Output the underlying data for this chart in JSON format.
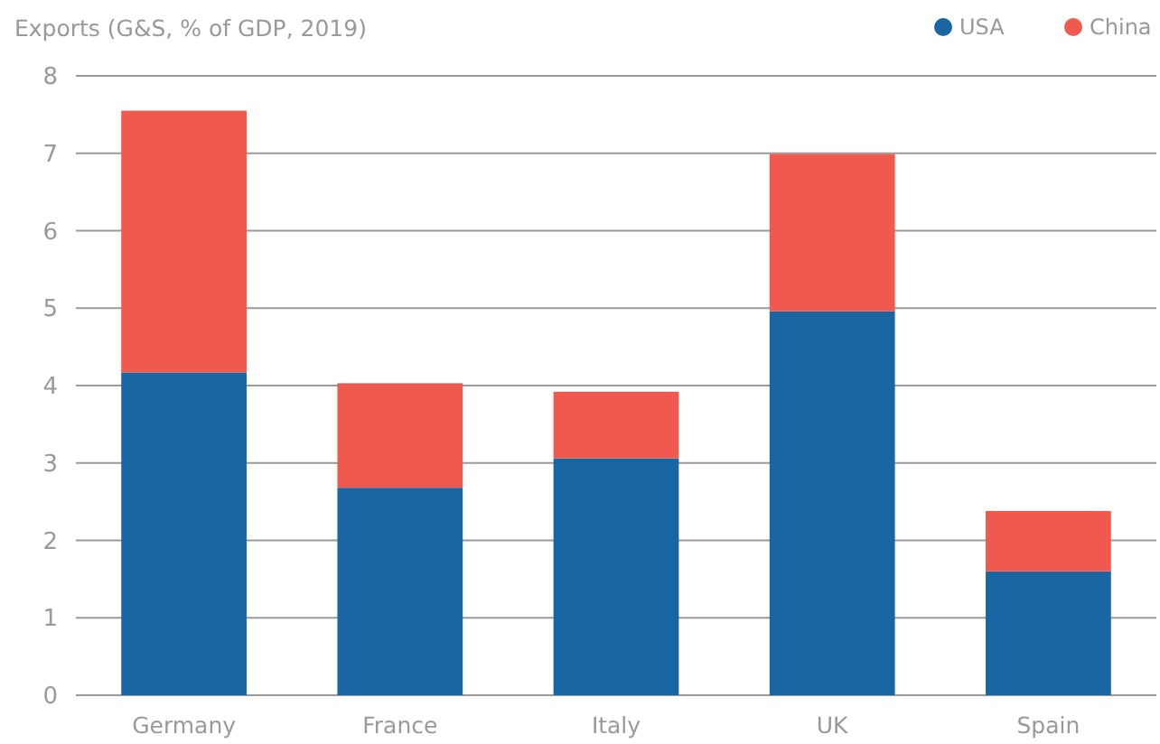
{
  "chart_data": {
    "type": "bar",
    "title": "Exports (G&S, % of GDP, 2019)",
    "categories": [
      "Germany",
      "France",
      "Italy",
      "UK",
      "Spain"
    ],
    "stacked": true,
    "series": [
      {
        "name": "USA",
        "color": "#1a66a3",
        "values": [
          4.17,
          2.68,
          3.06,
          4.96,
          1.6
        ]
      },
      {
        "name": "China",
        "color": "#f0594d",
        "values": [
          3.38,
          1.35,
          0.86,
          2.03,
          0.78
        ]
      }
    ],
    "ylim": [
      0,
      8
    ],
    "yticks": [
      0,
      1,
      2,
      3,
      4,
      5,
      6,
      7,
      8
    ],
    "grid": "y",
    "legend": "top right"
  }
}
